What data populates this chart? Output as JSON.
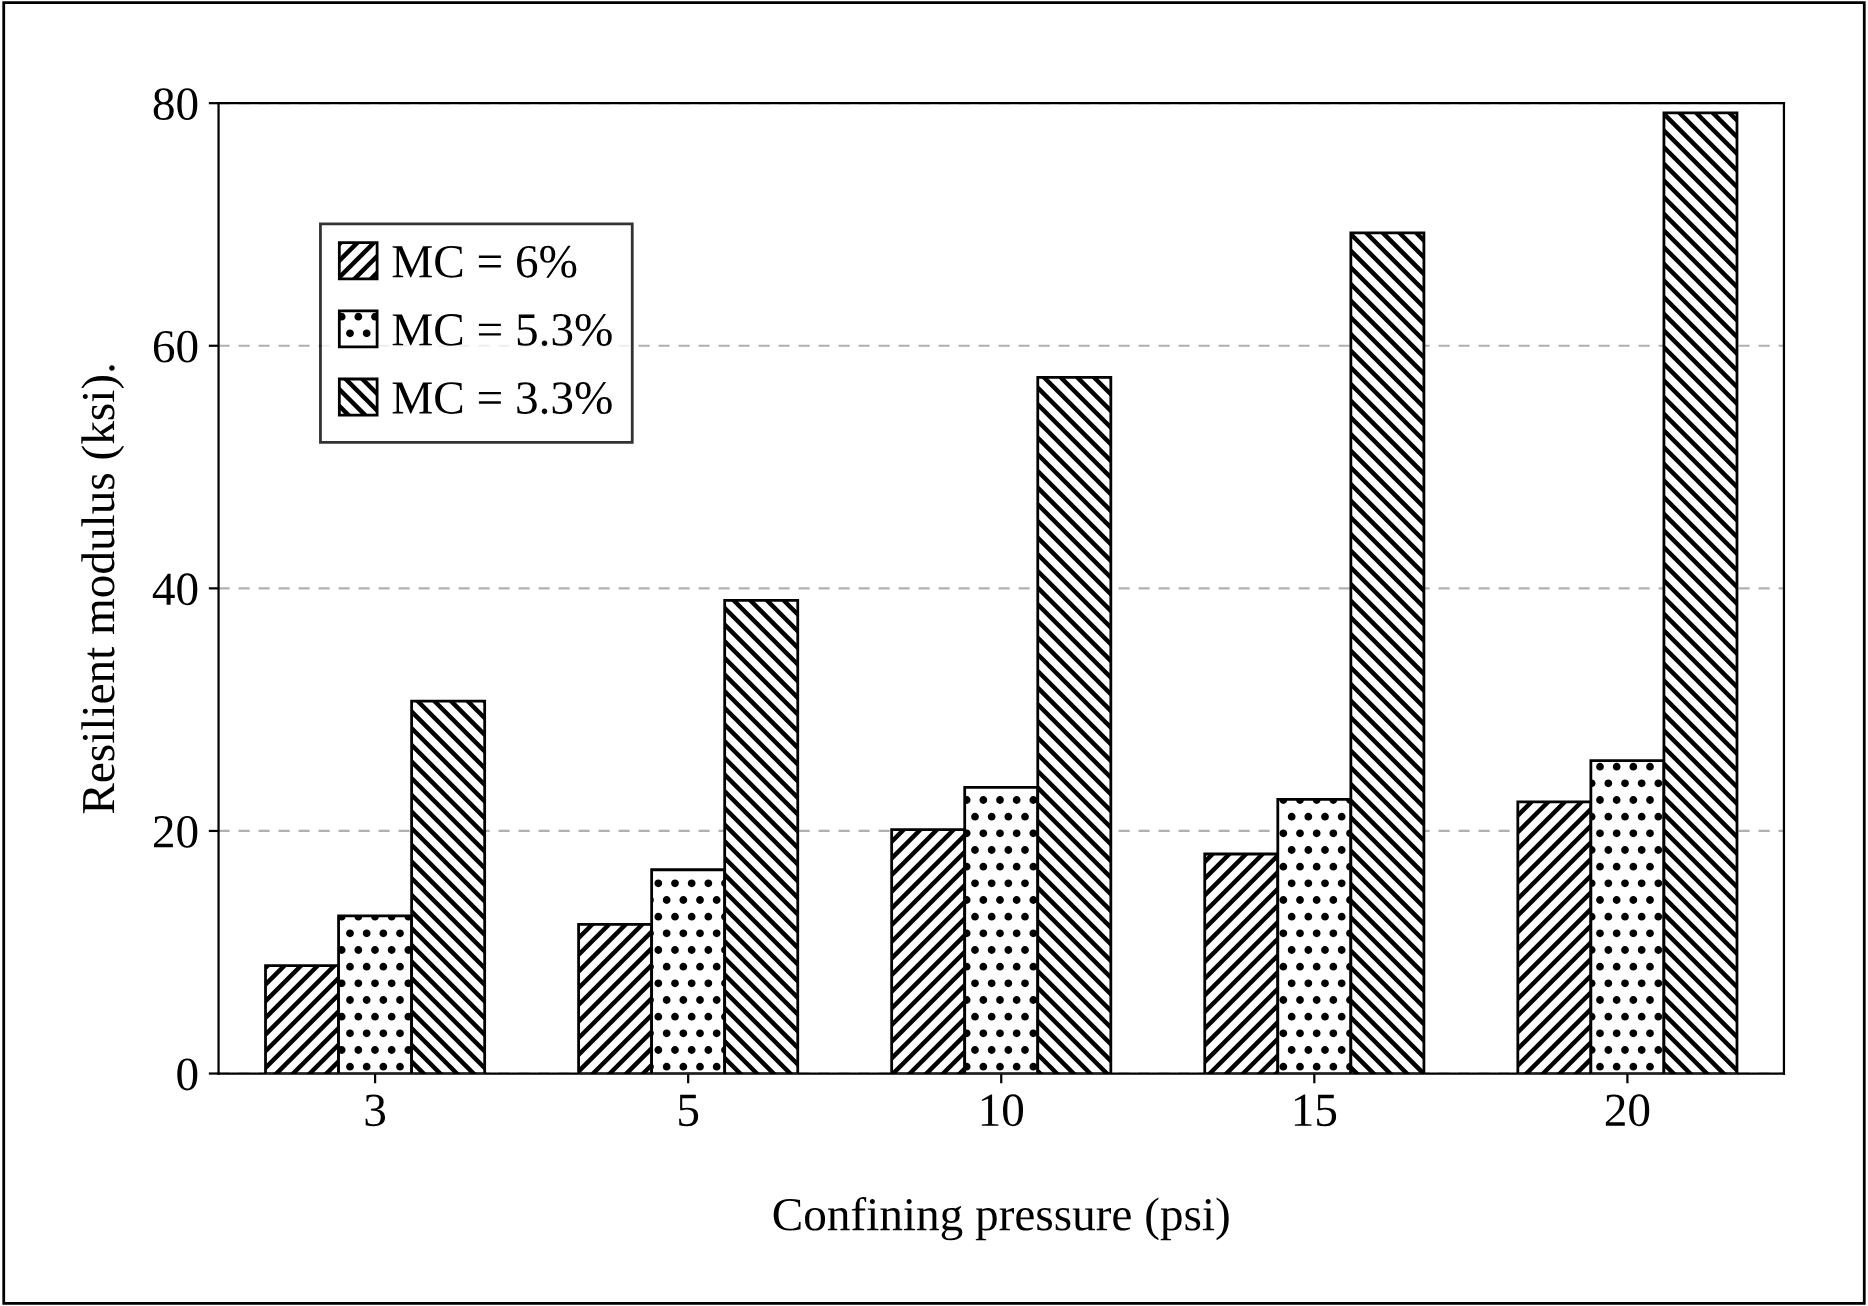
{
  "chart_data": {
    "type": "bar",
    "xlabel": "Confining pressure (psi)",
    "ylabel": "Resilient modulus (ksi).",
    "categories": [
      "3",
      "5",
      "10",
      "15",
      "20"
    ],
    "series": [
      {
        "name": "MC = 6%",
        "color": "#000000",
        "values": [
          8.9,
          12.3,
          20.1,
          18.1,
          22.4
        ]
      },
      {
        "name": "MC = 5.3%",
        "color": "#000000",
        "values": [
          13.0,
          16.8,
          23.6,
          22.6,
          25.8
        ]
      },
      {
        "name": "MC = 3.3%",
        "color": "#000000",
        "values": [
          30.7,
          39.0,
          57.4,
          69.3,
          79.2
        ]
      }
    ],
    "ylim": [
      0,
      80
    ],
    "yticks": [
      0,
      20,
      40,
      60,
      80
    ],
    "grid": "y",
    "legend": "top left"
  }
}
